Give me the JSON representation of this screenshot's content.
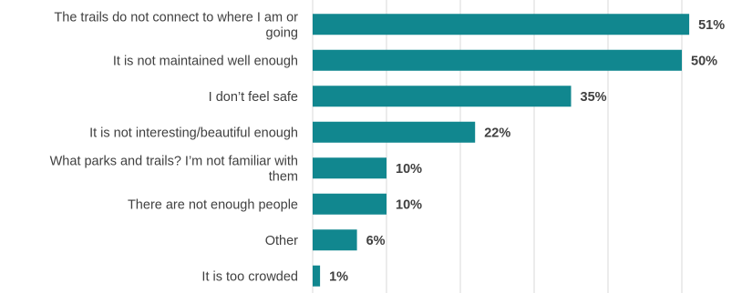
{
  "chart_data": {
    "type": "bar",
    "orientation": "horizontal",
    "categories": [
      [
        "The trails do not connect to where I am or",
        "going"
      ],
      [
        "It is not maintained well enough"
      ],
      [
        "I don’t feel safe"
      ],
      [
        "It is not interesting/beautiful enough"
      ],
      [
        "What parks and trails? I’m not familiar with",
        "them"
      ],
      [
        "There are not enough people"
      ],
      [
        "Other"
      ],
      [
        "It is too crowded"
      ]
    ],
    "values": [
      51,
      50,
      35,
      22,
      10,
      10,
      6,
      1
    ],
    "value_labels": [
      "51%",
      "50%",
      "35%",
      "22%",
      "10%",
      "10%",
      "6%",
      "1%"
    ],
    "xlim": [
      0,
      60
    ],
    "grid": "vertical",
    "bar_color": "#11878f"
  }
}
